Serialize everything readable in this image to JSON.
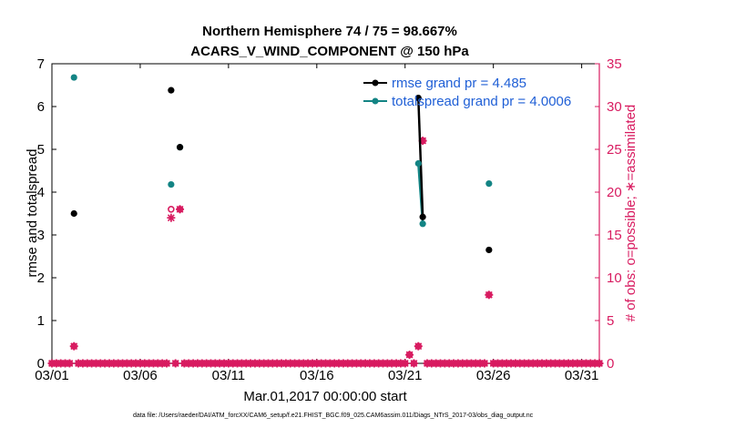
{
  "figure": {
    "title_line1": "Northern Hemisphere 74 / 75 = 98.667%",
    "title_line2": "ACARS_V_WIND_COMPONENT @ 150 hPa",
    "xlabel": "Mar.01,2017 00:00:00 start",
    "ylabel_left": "rmse and totalspread",
    "ylabel_right": "# of obs: o=possible; ∗=assimilated",
    "footer": "data file: /Users/raeder/DAI/ATM_forcXX/CAM6_setup/f.e21.FHIST_BGC.f09_025.CAM6assim.011/Diags_NTrS_2017-03/obs_diag_output.nc",
    "legend": {
      "rmse": "rmse grand pr = 4.485",
      "spread": "totalspread grand pr = 4.0006"
    }
  },
  "colors": {
    "rmse": "#000000",
    "spread": "#138484",
    "obs": "#d81b60",
    "legend_text": "#1f5fd6",
    "axis": "#000000"
  },
  "chart_data": {
    "type": "scatter",
    "x_unit": "days since Mar.01,2017",
    "xlim": [
      0,
      31
    ],
    "x_ticks": [
      {
        "x": 0,
        "label": "03/01"
      },
      {
        "x": 5,
        "label": "03/06"
      },
      {
        "x": 10,
        "label": "03/11"
      },
      {
        "x": 15,
        "label": "03/16"
      },
      {
        "x": 20,
        "label": "03/21"
      },
      {
        "x": 25,
        "label": "03/26"
      },
      {
        "x": 30,
        "label": "03/31"
      }
    ],
    "ylim_left": [
      0,
      7
    ],
    "yticks_left": [
      0,
      1,
      2,
      3,
      4,
      5,
      6,
      7
    ],
    "ylim_right": [
      0,
      35
    ],
    "yticks_right": [
      0,
      5,
      10,
      15,
      20,
      25,
      30,
      35
    ],
    "rmse": [
      {
        "x": 1.25,
        "y": 3.5
      },
      {
        "x": 6.75,
        "y": 6.38
      },
      {
        "x": 7.25,
        "y": 5.05
      },
      {
        "x": 20.75,
        "y": 6.2
      },
      {
        "x": 21.0,
        "y": 3.42
      },
      {
        "x": 24.75,
        "y": 2.65
      }
    ],
    "rmse_line": [
      [
        20.75,
        6.2
      ],
      [
        21.0,
        3.42
      ]
    ],
    "spread": [
      {
        "x": 1.25,
        "y": 6.68
      },
      {
        "x": 6.75,
        "y": 4.18
      },
      {
        "x": 7.25,
        "y": 5.05
      },
      {
        "x": 20.75,
        "y": 4.67
      },
      {
        "x": 21.0,
        "y": 3.26
      },
      {
        "x": 24.75,
        "y": 4.2
      }
    ],
    "spread_line": [
      [
        20.75,
        4.67
      ],
      [
        21.0,
        3.26
      ]
    ],
    "obs_possible_nonzero": [
      {
        "x": 1.25,
        "y": 2
      },
      {
        "x": 6.75,
        "y": 18
      },
      {
        "x": 7.25,
        "y": 18
      },
      {
        "x": 20.25,
        "y": 1
      },
      {
        "x": 20.75,
        "y": 2
      },
      {
        "x": 21.0,
        "y": 26
      },
      {
        "x": 24.75,
        "y": 8
      }
    ],
    "obs_assimilated_nonzero": [
      {
        "x": 1.25,
        "y": 2
      },
      {
        "x": 6.75,
        "y": 17
      },
      {
        "x": 7.25,
        "y": 18
      },
      {
        "x": 20.25,
        "y": 1
      },
      {
        "x": 20.75,
        "y": 2
      },
      {
        "x": 21.0,
        "y": 26
      },
      {
        "x": 24.75,
        "y": 8
      }
    ],
    "obs_zero_x_range": [
      0,
      31
    ],
    "obs_zero_step": 0.25,
    "legend_location": "top-right"
  }
}
